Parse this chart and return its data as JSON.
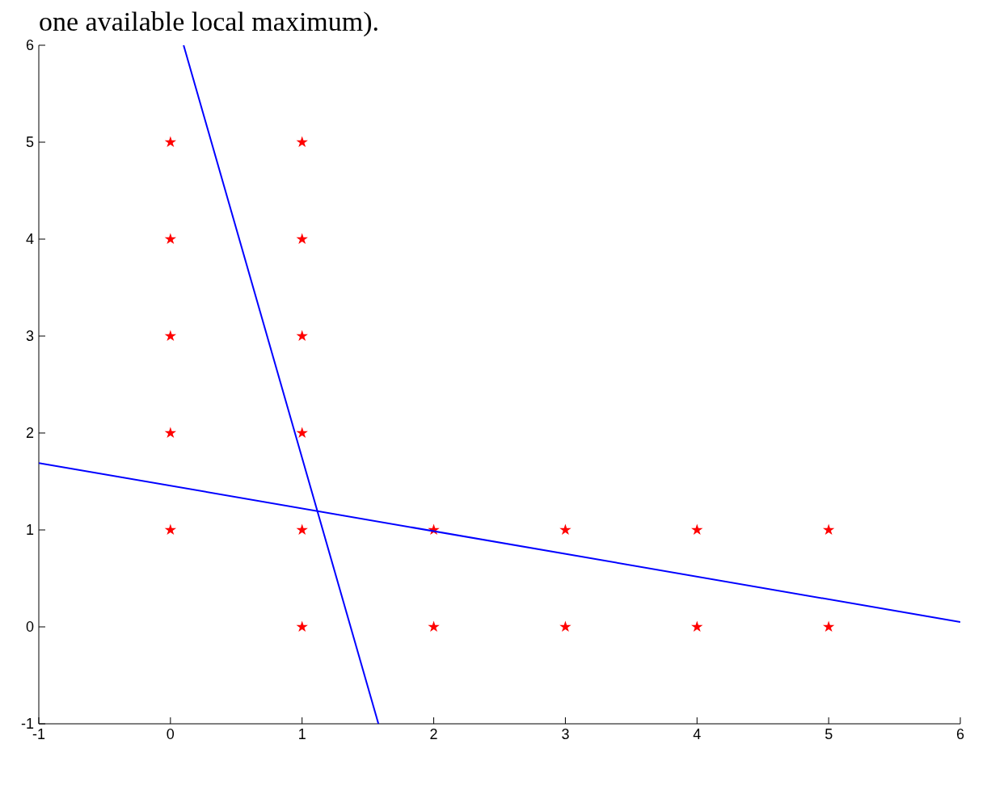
{
  "chart_data": {
    "type": "scatter",
    "annotations": [
      "one available local maximum)."
    ],
    "xlim": [
      -1,
      6
    ],
    "ylim": [
      -1,
      6
    ],
    "xticks": [
      -1,
      0,
      1,
      2,
      3,
      4,
      5,
      6
    ],
    "yticks": [
      -1,
      0,
      1,
      2,
      3,
      4,
      5,
      6
    ],
    "series": [
      {
        "marker": "star",
        "color": "#ff0000",
        "x": [
          0,
          0,
          0,
          0,
          0,
          1,
          1,
          1,
          1,
          1,
          1,
          2,
          2,
          3,
          3,
          4,
          4,
          5,
          5
        ],
        "values": [
          1,
          2,
          3,
          4,
          5,
          0,
          1,
          2,
          3,
          4,
          5,
          0,
          1,
          0,
          1,
          0,
          1,
          0,
          1
        ]
      },
      {
        "type": "line",
        "marker": "none",
        "color": "#0000ff",
        "x": [
          0.1,
          1.58
        ],
        "values": [
          6,
          -1
        ]
      },
      {
        "type": "line",
        "marker": "none",
        "color": "#0000ff",
        "x": [
          -1,
          6
        ],
        "values": [
          1.69,
          0.05
        ]
      }
    ]
  }
}
